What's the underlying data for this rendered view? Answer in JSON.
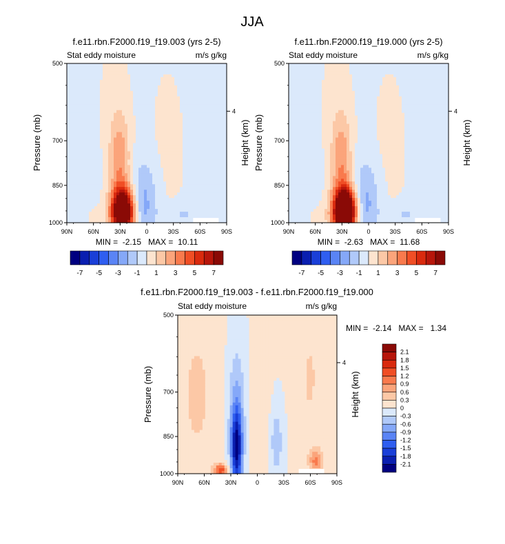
{
  "page_title": "JJA",
  "palette": {
    "neg": [
      "#000080",
      "#0a1fb0",
      "#1a3fd8",
      "#2f5ef0",
      "#5a84f5",
      "#85a8f8",
      "#b0c9f9",
      "#dbe9fb"
    ],
    "pos": [
      "#fde4cf",
      "#fcc8a6",
      "#fba47b",
      "#f97a4d",
      "#f04e25",
      "#d92a0e",
      "#b7160b",
      "#8a0a06"
    ],
    "missing": "#ffffff"
  },
  "chart_data": [
    {
      "type": "heatmap",
      "title": "f.e11.rbn.F2000.f19_f19.003 (yrs 2-5)",
      "left_label": "Stat eddy moisture",
      "right_label": "m/s g/kg",
      "ylabel": "Pressure (mb)",
      "ylabel_right": "Height (km)",
      "x_ticks": [
        "90N",
        "60N",
        "30N",
        "0",
        "30S",
        "60S",
        "90S"
      ],
      "y_ticks": [
        "500",
        "700",
        "850",
        "1000"
      ],
      "y_ticks_right": [
        "4"
      ],
      "stats": "MIN =  -2.15   MAX =  10.11",
      "colorbar_ticks": [
        "-7",
        "-5",
        "-3",
        "-1",
        "1",
        "3",
        "5",
        "7"
      ],
      "features": [
        {
          "lat": 30,
          "p": 940,
          "value": 10.11
        },
        {
          "lat": 5,
          "p": 920,
          "value": -2.15
        }
      ]
    },
    {
      "type": "heatmap",
      "title": "f.e11.rbn.F2000.f19_f19.000 (yrs 2-5)",
      "left_label": "Stat eddy moisture",
      "right_label": "m/s g/kg",
      "ylabel": "Pressure (mb)",
      "ylabel_right": "Height (km)",
      "x_ticks": [
        "90N",
        "60N",
        "30N",
        "0",
        "30S",
        "60S",
        "90S"
      ],
      "y_ticks": [
        "500",
        "700",
        "850",
        "1000"
      ],
      "y_ticks_right": [
        "4"
      ],
      "stats": "MIN =  -2.63   MAX =  11.68",
      "colorbar_ticks": [
        "-7",
        "-5",
        "-3",
        "-1",
        "1",
        "3",
        "5",
        "7"
      ],
      "features": [
        {
          "lat": 30,
          "p": 940,
          "value": 11.68
        },
        {
          "lat": 8,
          "p": 900,
          "value": -2.63
        }
      ]
    },
    {
      "type": "heatmap",
      "title": "f.e11.rbn.F2000.f19_f19.003 - f.e11.rbn.F2000.f19_f19.000",
      "left_label": "Stat eddy moisture",
      "right_label": "m/s g/kg",
      "ylabel": "Pressure (mb)",
      "ylabel_right": "Height (km)",
      "x_ticks": [
        "90N",
        "60N",
        "30N",
        "0",
        "30S",
        "60S",
        "90S"
      ],
      "y_ticks": [
        "500",
        "700",
        "850",
        "1000"
      ],
      "y_ticks_right": [
        "4"
      ],
      "stats": "MIN =  -2.14   MAX =   1.34",
      "colorbar_ticks": [
        "2.1",
        "1.8",
        "1.5",
        "1.2",
        "0.9",
        "0.6",
        "0.3",
        "0",
        "-0.3",
        "-0.6",
        "-0.9",
        "-1.2",
        "-1.5",
        "-1.8",
        "-2.1"
      ],
      "features": [
        {
          "lat": 27,
          "p": 930,
          "value": -2.14
        },
        {
          "lat": 40,
          "p": 985,
          "value": 1.34
        }
      ]
    }
  ]
}
